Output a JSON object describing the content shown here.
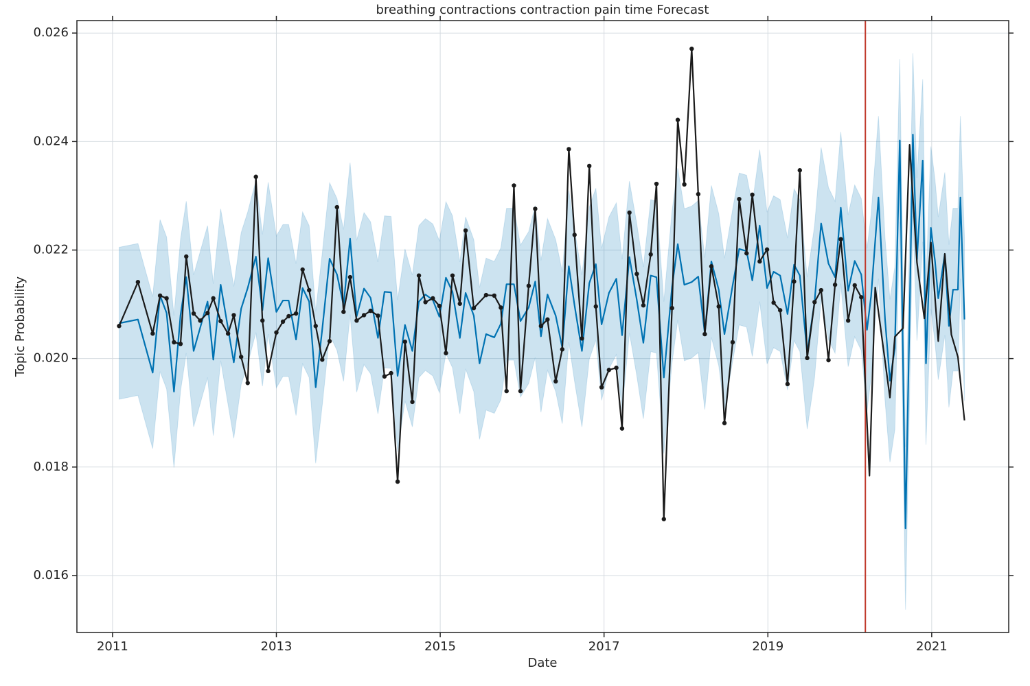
{
  "chart_data": {
    "type": "forecast",
    "title": "breathing contractions contraction pain time Forecast",
    "xlabel": "Date",
    "ylabel": "Topic Probability",
    "xlim": [
      2010.565,
      2021.94
    ],
    "ylim": [
      0.01495,
      0.02623
    ],
    "xticks": [
      2011,
      2013,
      2015,
      2017,
      2019,
      2021
    ],
    "yticks": [
      0.016,
      0.018,
      {
        "value": 0.02,
        "label": "0.020"
      },
      0.022,
      0.024,
      0.026
    ],
    "grid": true,
    "changepoint": {
      "x": 2020.19,
      "color": "#c0392b"
    },
    "forecast": {
      "color": "#0072b2",
      "band_color": "#0072b2",
      "x": [
        2011.08,
        2011.31,
        2011.49,
        2011.58,
        2011.66,
        2011.75,
        2011.83,
        2011.9,
        2011.99,
        2012.16,
        2012.23,
        2012.32,
        2012.48,
        2012.57,
        2012.65,
        2012.75,
        2012.83,
        2012.9,
        2013.0,
        2013.08,
        2013.15,
        2013.24,
        2013.32,
        2013.4,
        2013.48,
        2013.56,
        2013.65,
        2013.74,
        2013.82,
        2013.9,
        2013.98,
        2014.07,
        2014.15,
        2014.24,
        2014.32,
        2014.4,
        2014.48,
        2014.57,
        2014.66,
        2014.74,
        2014.82,
        2014.91,
        2014.99,
        2015.07,
        2015.15,
        2015.24,
        2015.31,
        2015.41,
        2015.48,
        2015.56,
        2015.66,
        2015.74,
        2015.81,
        2015.9,
        2015.98,
        2016.08,
        2016.16,
        2016.23,
        2016.31,
        2016.41,
        2016.49,
        2016.57,
        2016.64,
        2016.73,
        2016.82,
        2016.9,
        2016.97,
        2017.06,
        2017.15,
        2017.22,
        2017.31,
        2017.4,
        2017.48,
        2017.57,
        2017.64,
        2017.73,
        2017.83,
        2017.9,
        2017.98,
        2018.07,
        2018.15,
        2018.23,
        2018.31,
        2018.4,
        2018.47,
        2018.57,
        2018.65,
        2018.74,
        2018.81,
        2018.9,
        2018.99,
        2019.07,
        2019.15,
        2019.24,
        2019.32,
        2019.39,
        2019.48,
        2019.57,
        2019.65,
        2019.74,
        2019.82,
        2019.89,
        2019.98,
        2020.06,
        2020.14,
        2020.21,
        2020.26,
        2020.35,
        2020.43,
        2020.49,
        2020.55,
        2020.61,
        2020.68,
        2020.73,
        2020.77,
        2020.82,
        2020.89,
        2020.93,
        2020.99,
        2021.04,
        2021.08,
        2021.16,
        2021.21,
        2021.26,
        2021.32,
        2021.35,
        2021.4
      ],
      "values": [
        0.02065,
        0.02072,
        0.01974,
        0.02116,
        0.02084,
        0.01939,
        0.0208,
        0.0215,
        0.02014,
        0.02105,
        0.01998,
        0.02136,
        0.01993,
        0.02092,
        0.0213,
        0.02188,
        0.02089,
        0.02185,
        0.02086,
        0.02107,
        0.02107,
        0.02035,
        0.0213,
        0.02105,
        0.01947,
        0.02054,
        0.02184,
        0.02155,
        0.02098,
        0.02221,
        0.02078,
        0.02129,
        0.02112,
        0.02038,
        0.02123,
        0.02122,
        0.01968,
        0.02062,
        0.02014,
        0.02105,
        0.02118,
        0.02108,
        0.02077,
        0.02149,
        0.02123,
        0.02038,
        0.02121,
        0.02079,
        0.01991,
        0.02045,
        0.02039,
        0.02064,
        0.02137,
        0.02137,
        0.02069,
        0.02094,
        0.02142,
        0.02041,
        0.02118,
        0.02079,
        0.0202,
        0.0217,
        0.02098,
        0.02014,
        0.02139,
        0.02174,
        0.02063,
        0.02121,
        0.02147,
        0.02043,
        0.02187,
        0.02108,
        0.02029,
        0.02153,
        0.0215,
        0.01965,
        0.02132,
        0.02211,
        0.02136,
        0.02141,
        0.02151,
        0.02046,
        0.02179,
        0.02127,
        0.02045,
        0.02135,
        0.02202,
        0.02198,
        0.02144,
        0.02245,
        0.0213,
        0.0216,
        0.02153,
        0.02082,
        0.02173,
        0.02153,
        0.0201,
        0.02105,
        0.02249,
        0.02175,
        0.0215,
        0.02278,
        0.02125,
        0.0218,
        0.02155,
        0.02053,
        0.02115,
        0.02297,
        0.02073,
        0.01959,
        0.02019,
        0.02402,
        0.01687,
        0.02079,
        0.02413,
        0.02183,
        0.02365,
        0.01991,
        0.02241,
        0.0218,
        0.02111,
        0.02193,
        0.0206,
        0.02127,
        0.02127,
        0.02297,
        0.02072
      ],
      "upper": [
        0.02205,
        0.02212,
        0.02114,
        0.02256,
        0.02224,
        0.02079,
        0.0222,
        0.0229,
        0.02154,
        0.02245,
        0.02138,
        0.02276,
        0.02133,
        0.02232,
        0.0227,
        0.02328,
        0.02229,
        0.02325,
        0.02226,
        0.02247,
        0.02247,
        0.02175,
        0.0227,
        0.02245,
        0.02087,
        0.02194,
        0.02324,
        0.02295,
        0.02238,
        0.02361,
        0.02218,
        0.02269,
        0.02252,
        0.02178,
        0.02263,
        0.02262,
        0.02108,
        0.02202,
        0.02154,
        0.02245,
        0.02258,
        0.02248,
        0.02217,
        0.02289,
        0.02263,
        0.02178,
        0.02261,
        0.02219,
        0.02131,
        0.02185,
        0.02179,
        0.02204,
        0.02277,
        0.02277,
        0.02209,
        0.02234,
        0.02282,
        0.02181,
        0.02258,
        0.02219,
        0.0216,
        0.0231,
        0.02238,
        0.02154,
        0.02279,
        0.02314,
        0.02203,
        0.02261,
        0.02287,
        0.02183,
        0.02327,
        0.02248,
        0.02169,
        0.02293,
        0.0229,
        0.02105,
        0.02272,
        0.02351,
        0.02276,
        0.02281,
        0.02291,
        0.02186,
        0.02319,
        0.02267,
        0.02185,
        0.02275,
        0.02342,
        0.02338,
        0.02284,
        0.02385,
        0.0227,
        0.023,
        0.02293,
        0.02222,
        0.02313,
        0.02293,
        0.0215,
        0.02245,
        0.02389,
        0.02315,
        0.0229,
        0.02418,
        0.02265,
        0.0232,
        0.02295,
        0.02203,
        0.02265,
        0.02447,
        0.02223,
        0.02109,
        0.02169,
        0.02552,
        0.01837,
        0.02229,
        0.02563,
        0.02333,
        0.02515,
        0.02141,
        0.02391,
        0.0233,
        0.02261,
        0.02343,
        0.0221,
        0.02277,
        0.02277,
        0.02447,
        0.02222
      ],
      "lower": [
        0.01925,
        0.01932,
        0.01834,
        0.01976,
        0.01944,
        0.01799,
        0.0194,
        0.0201,
        0.01874,
        0.01965,
        0.01858,
        0.01996,
        0.01853,
        0.01952,
        0.0199,
        0.02048,
        0.01949,
        0.02045,
        0.01946,
        0.01967,
        0.01967,
        0.01895,
        0.0199,
        0.01965,
        0.01807,
        0.01914,
        0.02044,
        0.02015,
        0.01958,
        0.02081,
        0.01938,
        0.01989,
        0.01972,
        0.01898,
        0.01983,
        0.01982,
        0.01828,
        0.01922,
        0.01874,
        0.01965,
        0.01978,
        0.01968,
        0.01937,
        0.02009,
        0.01983,
        0.01898,
        0.01981,
        0.01939,
        0.01851,
        0.01905,
        0.01899,
        0.01924,
        0.01997,
        0.01997,
        0.01929,
        0.01954,
        0.02002,
        0.01901,
        0.01978,
        0.01939,
        0.0188,
        0.0203,
        0.01958,
        0.01874,
        0.01999,
        0.02034,
        0.01923,
        0.01981,
        0.02007,
        0.01903,
        0.02047,
        0.01968,
        0.01889,
        0.02013,
        0.0201,
        0.01825,
        0.01992,
        0.02071,
        0.01996,
        0.02001,
        0.02011,
        0.01906,
        0.02039,
        0.01987,
        0.01905,
        0.01995,
        0.02062,
        0.02058,
        0.02004,
        0.02105,
        0.0199,
        0.0202,
        0.02013,
        0.01942,
        0.02033,
        0.02013,
        0.0187,
        0.01965,
        0.02109,
        0.02035,
        0.0201,
        0.02138,
        0.01985,
        0.0204,
        0.02015,
        0.01903,
        0.01965,
        0.02147,
        0.01923,
        0.01809,
        0.01869,
        0.02252,
        0.01537,
        0.01929,
        0.02263,
        0.02033,
        0.02215,
        0.01841,
        0.02091,
        0.0203,
        0.01961,
        0.02043,
        0.0191,
        0.01977,
        0.01977,
        0.02147,
        0.01922
      ]
    },
    "actual": {
      "color": "#1a1a1a",
      "markers": true,
      "x": [
        2011.08,
        2011.31,
        2011.49,
        2011.58,
        2011.66,
        2011.75,
        2011.83,
        2011.9,
        2011.99,
        2012.07,
        2012.16,
        2012.23,
        2012.32,
        2012.41,
        2012.48,
        2012.57,
        2012.65,
        2012.75,
        2012.83,
        2012.9,
        2013.0,
        2013.08,
        2013.15,
        2013.24,
        2013.32,
        2013.4,
        2013.48,
        2013.56,
        2013.65,
        2013.74,
        2013.82,
        2013.9,
        2013.98,
        2014.07,
        2014.15,
        2014.24,
        2014.32,
        2014.4,
        2014.48,
        2014.57,
        2014.66,
        2014.74,
        2014.82,
        2014.91,
        2014.99,
        2015.07,
        2015.15,
        2015.24,
        2015.31,
        2015.41,
        2015.56,
        2015.66,
        2015.74,
        2015.81,
        2015.9,
        2015.98,
        2016.08,
        2016.16,
        2016.23,
        2016.31,
        2016.41,
        2016.49,
        2016.57,
        2016.64,
        2016.73,
        2016.82,
        2016.9,
        2016.97,
        2017.06,
        2017.15,
        2017.22,
        2017.31,
        2017.4,
        2017.48,
        2017.57,
        2017.64,
        2017.73,
        2017.83,
        2017.9,
        2017.98,
        2018.07,
        2018.15,
        2018.23,
        2018.31,
        2018.4,
        2018.47,
        2018.57,
        2018.65,
        2018.74,
        2018.81,
        2018.9,
        2018.99,
        2019.07,
        2019.15,
        2019.24,
        2019.32,
        2019.39,
        2019.48,
        2019.57,
        2019.65,
        2019.74,
        2019.82,
        2019.89,
        2019.98,
        2020.06,
        2020.14
      ],
      "values": [
        0.0206,
        0.02141,
        0.02046,
        0.02116,
        0.02111,
        0.0203,
        0.02027,
        0.02188,
        0.02083,
        0.0207,
        0.02084,
        0.02111,
        0.02069,
        0.02046,
        0.0208,
        0.02003,
        0.01955,
        0.02335,
        0.0207,
        0.01977,
        0.02048,
        0.02068,
        0.02078,
        0.02083,
        0.02164,
        0.02126,
        0.0206,
        0.01998,
        0.02032,
        0.02279,
        0.02086,
        0.0215,
        0.0207,
        0.0208,
        0.02088,
        0.02079,
        0.01967,
        0.01973,
        0.01773,
        0.02031,
        0.0192,
        0.02153,
        0.02104,
        0.02111,
        0.02097,
        0.0201,
        0.02153,
        0.02101,
        0.02236,
        0.02093,
        0.02117,
        0.02116,
        0.02094,
        0.0194,
        0.02319,
        0.0194,
        0.02134,
        0.02276,
        0.0206,
        0.02072,
        0.01958,
        0.02017,
        0.02386,
        0.02228,
        0.02037,
        0.02355,
        0.02096,
        0.01947,
        0.01979,
        0.01983,
        0.01871,
        0.02269,
        0.02156,
        0.02098,
        0.02192,
        0.02322,
        0.01704,
        0.02093,
        0.0244,
        0.02321,
        0.02571,
        0.02303,
        0.02045,
        0.0217,
        0.02096,
        0.01881,
        0.0203,
        0.02294,
        0.02194,
        0.02302,
        0.02179,
        0.02201,
        0.02103,
        0.02089,
        0.01953,
        0.02142,
        0.02347,
        0.02001,
        0.02104,
        0.02126,
        0.01997,
        0.02136,
        0.0222,
        0.0207,
        0.02135,
        0.02113
      ]
    },
    "actual_future": {
      "color": "#1a1a1a",
      "markers": false,
      "x": [
        2020.14,
        2020.24,
        2020.31,
        2020.49,
        2020.55,
        2020.65,
        2020.73,
        2020.82,
        2020.91,
        2020.99,
        2021.08,
        2021.16,
        2021.24,
        2021.32,
        2021.4
      ],
      "values": [
        0.02113,
        0.01784,
        0.02131,
        0.01928,
        0.0204,
        0.02056,
        0.02394,
        0.02177,
        0.02074,
        0.02214,
        0.02032,
        0.02193,
        0.02044,
        0.02003,
        0.01886
      ]
    }
  }
}
